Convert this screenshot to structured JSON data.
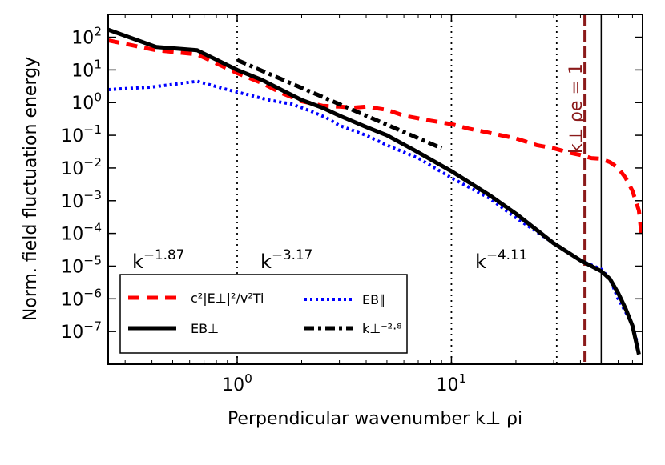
{
  "chart_data": {
    "type": "line",
    "title": "",
    "xlabel": "Perpendicular wavenumber k⊥ ρi",
    "ylabel": "Norm. field fluctuation energy",
    "xscale": "log",
    "yscale": "log",
    "xlim": [
      0.25,
      78
    ],
    "ylim": [
      1e-08,
      500
    ],
    "grid": false,
    "legend_position": "bottom-left",
    "x_ticks": [
      {
        "value": 1,
        "base": "10",
        "exp": "0"
      },
      {
        "value": 10,
        "base": "10",
        "exp": "1"
      }
    ],
    "y_ticks": [
      {
        "value": 1e-07,
        "base": "10",
        "exp": "−7"
      },
      {
        "value": 1e-06,
        "base": "10",
        "exp": "−6"
      },
      {
        "value": 1e-05,
        "base": "10",
        "exp": "−5"
      },
      {
        "value": 0.0001,
        "base": "10",
        "exp": "−4"
      },
      {
        "value": 0.001,
        "base": "10",
        "exp": "−3"
      },
      {
        "value": 0.01,
        "base": "10",
        "exp": "−2"
      },
      {
        "value": 0.1,
        "base": "10",
        "exp": "−1"
      },
      {
        "value": 1,
        "base": "10",
        "exp": "0"
      },
      {
        "value": 10,
        "base": "10",
        "exp": "1"
      },
      {
        "value": 100,
        "base": "10",
        "exp": "2"
      }
    ],
    "series": [
      {
        "name": "c²|E⊥|²/v²Ti",
        "color": "#ff0000",
        "style": "dashed",
        "x": [
          0.25,
          0.42,
          0.65,
          1.0,
          1.3,
          1.6,
          2.0,
          2.5,
          3.0,
          3.5,
          4.0,
          5.0,
          6.0,
          8.0,
          10,
          12,
          15,
          20,
          25,
          30,
          35,
          40,
          45,
          50,
          55,
          60,
          65,
          70,
          75,
          77
        ],
        "y": [
          80,
          40,
          30,
          8,
          4,
          2,
          1.1,
          0.8,
          0.75,
          0.7,
          0.75,
          0.6,
          0.4,
          0.28,
          0.22,
          0.16,
          0.12,
          0.08,
          0.05,
          0.04,
          0.03,
          0.025,
          0.02,
          0.019,
          0.015,
          0.01,
          0.005,
          0.002,
          0.0005,
          0.0001
        ]
      },
      {
        "name": "EB∥",
        "color": "#0000ff",
        "style": "dotted",
        "x": [
          0.25,
          0.4,
          0.65,
          0.9,
          1.1,
          1.4,
          1.8,
          2.2,
          2.6,
          3.0,
          4.0,
          5.0,
          7.0,
          10,
          15,
          20,
          30,
          40,
          50,
          55,
          60,
          65,
          70,
          75
        ],
        "y": [
          2.5,
          3,
          4.5,
          2.5,
          1.8,
          1.2,
          0.9,
          0.55,
          0.35,
          0.2,
          0.1,
          0.05,
          0.02,
          0.005,
          0.0012,
          0.0003,
          5e-05,
          1.5e-05,
          8e-06,
          4e-06,
          1e-06,
          4e-07,
          1.5e-07,
          3e-08
        ]
      },
      {
        "name": "EB⊥",
        "color": "#000000",
        "style": "solid",
        "x": [
          0.25,
          0.42,
          0.65,
          1.0,
          1.3,
          1.6,
          2.0,
          2.5,
          3.0,
          4.0,
          5.0,
          7.0,
          10,
          15,
          20,
          30,
          40,
          50,
          55,
          60,
          65,
          70,
          75
        ],
        "y": [
          170,
          50,
          40,
          10,
          5,
          2.5,
          1.2,
          0.7,
          0.4,
          0.18,
          0.1,
          0.03,
          0.008,
          0.0015,
          0.0004,
          5e-05,
          1.5e-05,
          7e-06,
          4e-06,
          1.5e-06,
          5e-07,
          1.5e-07,
          2e-08
        ]
      },
      {
        "name": "k⊥⁻²·⁸",
        "color": "#000000",
        "style": "dashdot",
        "x": [
          1,
          9
        ],
        "y": [
          20,
          0.04
        ]
      }
    ],
    "vertical_lines": [
      {
        "x": 1.0,
        "style": "dotted",
        "color": "#000000"
      },
      {
        "x": 10,
        "style": "dotted",
        "color": "#000000"
      },
      {
        "x": 31,
        "style": "dotted",
        "color": "#000000"
      },
      {
        "x": 42,
        "style": "dashed",
        "color": "#8b1a1a"
      },
      {
        "x": 50,
        "style": "solid",
        "color": "#000000"
      }
    ],
    "annotations": [
      {
        "base": "k",
        "exp": "−1.87"
      },
      {
        "base": "k",
        "exp": "−3.17"
      },
      {
        "base": "k",
        "exp": "−4.11"
      },
      {
        "text": "k⊥ ρe = 1",
        "color": "#8b1a1a"
      }
    ]
  }
}
